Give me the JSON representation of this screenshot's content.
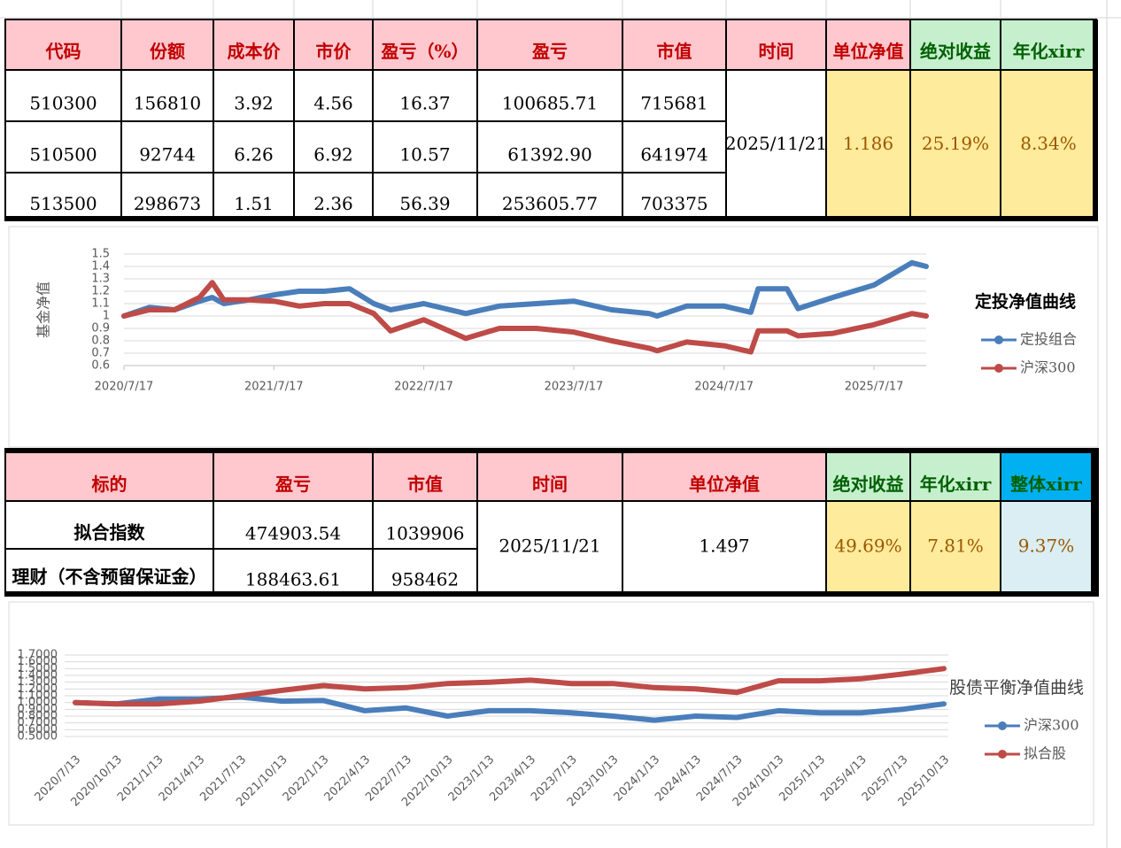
{
  "tables": [
    {
      "headers": [
        "代码",
        "份额",
        "成本价",
        "市价",
        "盈亏（%）",
        "盈亏",
        "市值",
        "时间",
        "单位净值",
        "绝对收益",
        "年化xirr"
      ],
      "rows": [
        [
          "510300",
          "156810",
          "3.92",
          "4.56",
          "16.37",
          "100685.71",
          "715681"
        ],
        [
          "510500",
          "92744",
          "6.26",
          "6.92",
          "10.57",
          "61392.90",
          "641974"
        ],
        [
          "513500",
          "298673",
          "1.51",
          "2.36",
          "56.39",
          "253605.77",
          "703375"
        ]
      ],
      "merged": [
        "2025/11/21",
        "1.186",
        "25.19%",
        "8.34%"
      ]
    },
    {
      "headers": [
        "标的",
        "盈亏",
        "市值",
        "时间",
        "单位净值",
        "绝对收益",
        "年化xirr",
        "整体xirr"
      ],
      "rows": [
        [
          "拟合指数",
          "474903.54",
          "1039906"
        ],
        [
          "理财（不含预留保证金）",
          "188463.61",
          "958462"
        ]
      ],
      "merged": [
        "2025/11/21",
        "1.497",
        "49.69%",
        "7.81%",
        "9.37%"
      ]
    }
  ],
  "chart_data": [
    {
      "type": "line",
      "title": "定投净值曲线",
      "y_label": "基金净值",
      "x": [
        "2020/7/17",
        "2020/9/17",
        "2020/11/17",
        "2021/1/17",
        "2021/2/17",
        "2021/3/17",
        "2021/5/17",
        "2021/7/17",
        "2021/9/17",
        "2021/11/17",
        "2022/1/17",
        "2022/3/17",
        "2022/4/27",
        "2022/7/17",
        "2022/10/27",
        "2023/1/17",
        "2023/4/17",
        "2023/7/17",
        "2023/10/17",
        "2024/1/17",
        "2024/2/5",
        "2024/4/17",
        "2024/7/17",
        "2024/9/20",
        "2024/10/8",
        "2024/12/17",
        "2025/1/13",
        "2025/4/8",
        "2025/7/17",
        "2025/10/17",
        "2025/11/21"
      ],
      "series": [
        {
          "name": "定投组合",
          "color": "#4a7ebb",
          "values": [
            1,
            1.07,
            1.05,
            1.12,
            1.15,
            1.1,
            1.13,
            1.17,
            1.2,
            1.2,
            1.22,
            1.1,
            1.05,
            1.1,
            1.02,
            1.08,
            1.1,
            1.12,
            1.05,
            1.02,
            1.0,
            1.08,
            1.08,
            1.03,
            1.22,
            1.22,
            1.06,
            1.15,
            1.25,
            1.43,
            1.4
          ]
        },
        {
          "name": "沪深300",
          "color": "#be4b48",
          "values": [
            1,
            1.05,
            1.05,
            1.15,
            1.27,
            1.13,
            1.13,
            1.12,
            1.08,
            1.1,
            1.1,
            1.02,
            0.88,
            0.97,
            0.82,
            0.9,
            0.9,
            0.87,
            0.8,
            0.74,
            0.72,
            0.79,
            0.76,
            0.71,
            0.88,
            0.88,
            0.84,
            0.86,
            0.93,
            1.02,
            1.0
          ]
        }
      ],
      "xticks": [
        "2020/7/17",
        "2021/7/17",
        "2022/7/17",
        "2023/7/17",
        "2024/7/17",
        "2025/7/17"
      ],
      "ylim": [
        0.6,
        1.5
      ],
      "yticks": [
        0.6,
        0.7,
        0.8,
        0.9,
        1,
        1.1,
        1.2,
        1.3,
        1.4,
        1.5
      ],
      "grid": true,
      "legend": "right"
    },
    {
      "type": "line",
      "title": "股债平衡净值曲线",
      "categories": [
        "2020/7/13",
        "2020/10/13",
        "2021/1/13",
        "2021/4/13",
        "2021/7/13",
        "2021/10/13",
        "2022/1/13",
        "2022/4/13",
        "2022/7/13",
        "2022/10/13",
        "2023/1/13",
        "2023/4/13",
        "2023/7/13",
        "2023/10/13",
        "2024/1/13",
        "2024/4/13",
        "2024/7/13",
        "2024/10/13",
        "2025/1/13",
        "2025/4/13",
        "2025/7/13",
        "2025/10/13"
      ],
      "series": [
        {
          "name": "沪深300",
          "color": "#4a7ebb",
          "values": [
            1.0,
            0.98,
            1.05,
            1.05,
            1.08,
            1.02,
            1.03,
            0.88,
            0.92,
            0.8,
            0.88,
            0.88,
            0.85,
            0.8,
            0.74,
            0.8,
            0.78,
            0.88,
            0.85,
            0.85,
            0.9,
            0.98
          ]
        },
        {
          "name": "拟合股",
          "color": "#be4b48",
          "values": [
            1.0,
            0.98,
            0.98,
            1.02,
            1.1,
            1.18,
            1.25,
            1.2,
            1.22,
            1.28,
            1.3,
            1.33,
            1.28,
            1.28,
            1.22,
            1.2,
            1.15,
            1.32,
            1.32,
            1.35,
            1.42,
            1.5
          ]
        }
      ],
      "ylim": [
        0.5,
        1.7
      ],
      "yticks": [
        {
          "value": 0.5,
          "label": "0.5000"
        },
        {
          "value": 0.6,
          "label": "0.6000"
        },
        {
          "value": 0.7,
          "label": "0.7000"
        },
        {
          "value": 0.8,
          "label": "0.8000"
        },
        {
          "value": 0.9,
          "label": "0.9000"
        },
        {
          "value": 1.0,
          "label": "1.0000"
        },
        {
          "value": 1.1,
          "label": "1.1000"
        },
        {
          "value": 1.2,
          "label": "1.2000"
        },
        {
          "value": 1.3,
          "label": "1.3000"
        },
        {
          "value": 1.4,
          "label": "1.4000"
        },
        {
          "value": 1.5,
          "label": "1.5000"
        },
        {
          "value": 1.6,
          "label": "1.6000"
        },
        {
          "value": 1.7,
          "label": "1.7000"
        }
      ],
      "grid": true,
      "legend": "right"
    }
  ]
}
